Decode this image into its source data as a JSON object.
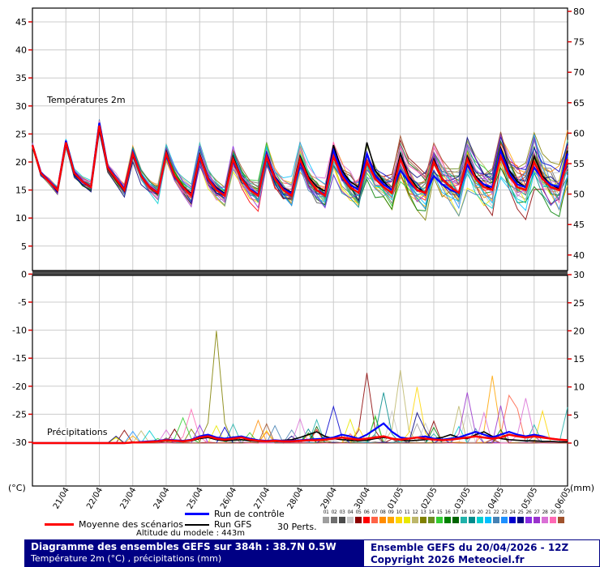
{
  "chart_data": {
    "type": "line",
    "panels": [
      {
        "id": "temperature",
        "label": "Températures 2m"
      },
      {
        "id": "precipitation",
        "label": "Précipitations"
      }
    ],
    "x_labels": [
      "21/04",
      "22/04",
      "23/04",
      "24/04",
      "25/04",
      "26/04",
      "27/04",
      "28/04",
      "29/04",
      "30/04",
      "01/05",
      "02/05",
      "03/05",
      "04/05",
      "05/05",
      "06/05"
    ],
    "n_points": 65,
    "x_step_hours": 6,
    "x_label_every": 4,
    "axes": {
      "left_unit": "(°C)",
      "right_unit": "(mm)",
      "left_ticks_top": [
        45,
        40,
        35,
        30,
        25,
        20,
        15,
        10,
        5
      ],
      "left_ticks_bottom": [
        0,
        -5,
        -10,
        -15,
        -20,
        -25,
        -30
      ],
      "right_ticks_top": [
        80,
        75,
        70,
        65,
        60,
        55,
        50,
        45,
        40
      ],
      "right_ticks_bottom": [
        30,
        25,
        20,
        15,
        10,
        5,
        0
      ]
    },
    "series": {
      "mean_temp": [
        23.0,
        18.0,
        16.5,
        15.0,
        23.5,
        18.0,
        16.5,
        15.5,
        26.5,
        19.0,
        17.0,
        15.0,
        21.5,
        17.5,
        15.5,
        14.5,
        21.5,
        17.5,
        15.5,
        14.0,
        21.0,
        17.0,
        15.0,
        14.0,
        20.5,
        17.0,
        15.0,
        14.0,
        21.0,
        17.0,
        15.0,
        14.0,
        20.5,
        17.0,
        15.0,
        14.0,
        21.0,
        17.5,
        15.5,
        14.5,
        20.0,
        17.0,
        15.5,
        14.5,
        20.5,
        17.0,
        15.0,
        14.5,
        20.0,
        17.0,
        15.5,
        14.5,
        20.5,
        17.0,
        15.5,
        15.0,
        21.0,
        17.5,
        15.5,
        15.0,
        20.0,
        17.0,
        15.5,
        15.0,
        20.5
      ],
      "control_temp": [
        23.0,
        18.2,
        16.6,
        15.1,
        23.8,
        18.2,
        16.6,
        15.6,
        27.0,
        19.2,
        17.0,
        15.2,
        21.8,
        17.6,
        15.6,
        14.6,
        21.2,
        17.4,
        15.4,
        14.2,
        20.8,
        17.2,
        15.2,
        14.2,
        20.2,
        17.0,
        15.2,
        14.2,
        21.4,
        17.2,
        15.2,
        14.4,
        20.0,
        16.8,
        15.0,
        14.2,
        22.0,
        18.0,
        16.0,
        15.0,
        21.5,
        17.5,
        16.0,
        15.0,
        18.5,
        16.5,
        15.0,
        14.5,
        17.5,
        16.0,
        15.0,
        14.5,
        19.5,
        17.0,
        16.0,
        15.5,
        22.0,
        18.0,
        16.0,
        15.5,
        19.0,
        17.0,
        16.0,
        15.5,
        21.5
      ],
      "gfs_temp": [
        23.0,
        18.0,
        16.4,
        14.9,
        23.2,
        17.8,
        16.4,
        15.4,
        26.0,
        18.8,
        16.8,
        14.8,
        21.2,
        17.4,
        15.4,
        14.4,
        21.8,
        17.6,
        15.6,
        14.4,
        21.4,
        17.2,
        15.4,
        14.4,
        21.0,
        17.2,
        15.2,
        14.2,
        21.6,
        17.4,
        15.4,
        14.6,
        21.0,
        17.4,
        15.6,
        14.8,
        23.0,
        18.5,
        16.5,
        15.5,
        23.5,
        18.5,
        16.5,
        15.0,
        21.5,
        17.5,
        15.5,
        14.5,
        20.5,
        17.0,
        15.5,
        14.5,
        21.0,
        17.5,
        16.0,
        15.0,
        22.5,
        18.5,
        16.5,
        15.5,
        21.0,
        17.5,
        16.0,
        15.2,
        22.0
      ],
      "mean_precip": [
        0,
        0,
        0,
        0,
        0,
        0,
        0,
        0,
        0,
        0,
        0,
        0,
        0.1,
        0.1,
        0.2,
        0.3,
        0.5,
        0.4,
        0.3,
        0.5,
        1.0,
        1.2,
        0.8,
        0.6,
        0.8,
        1.0,
        0.6,
        0.4,
        0.3,
        0.4,
        0.3,
        0.3,
        0.4,
        0.5,
        0.5,
        0.6,
        0.8,
        1.0,
        0.8,
        0.6,
        0.8,
        1.0,
        1.2,
        0.8,
        0.6,
        0.8,
        1.0,
        0.8,
        0.6,
        0.5,
        0.6,
        0.8,
        1.0,
        1.2,
        1.0,
        0.8,
        1.0,
        1.5,
        1.2,
        1.0,
        1.2,
        1.0,
        0.8,
        0.6,
        0.5
      ],
      "control_precip": [
        0,
        0,
        0,
        0,
        0,
        0,
        0,
        0,
        0,
        0,
        0,
        0,
        0.1,
        0.2,
        0.3,
        0.4,
        0.6,
        0.5,
        0.4,
        0.6,
        1.2,
        1.5,
        1.0,
        0.8,
        1.0,
        1.2,
        0.8,
        0.5,
        0.4,
        0.5,
        0.4,
        0.4,
        0.5,
        0.6,
        0.7,
        0.8,
        1.0,
        1.5,
        1.2,
        0.8,
        1.5,
        2.5,
        3.5,
        2.0,
        1.0,
        0.8,
        1.0,
        1.2,
        0.8,
        0.6,
        0.8,
        1.0,
        1.5,
        2.0,
        1.5,
        1.0,
        1.5,
        2.0,
        1.5,
        1.2,
        1.5,
        1.2,
        0.8,
        0.6,
        0.5
      ],
      "gfs_precip": [
        0,
        0,
        0,
        0,
        0,
        0,
        0,
        0,
        0,
        0,
        0,
        0,
        0.1,
        0.1,
        0.2,
        0.3,
        0.5,
        0.4,
        0.3,
        0.4,
        0.8,
        1.0,
        0.6,
        0.4,
        0.5,
        0.6,
        0.4,
        0.3,
        0.3,
        0.4,
        0.5,
        0.6,
        1.0,
        1.5,
        2.0,
        1.2,
        0.8,
        0.6,
        0.5,
        0.4,
        0.5,
        0.8,
        1.0,
        0.8,
        0.5,
        0.4,
        0.5,
        0.6,
        0.8,
        1.0,
        1.5,
        1.0,
        0.8,
        1.5,
        2.0,
        1.2,
        0.8,
        0.6,
        0.5,
        0.4,
        0.4,
        0.3,
        0.3,
        0.2,
        0.2
      ]
    },
    "members": {
      "count": 30,
      "colors": [
        "#9e9e9e",
        "#6e6e6e",
        "#4a4a4a",
        "#c8c8c8",
        "#8b0000",
        "#ff0000",
        "#ff6347",
        "#ff8c00",
        "#ffa500",
        "#ffd700",
        "#e8e800",
        "#bdb76b",
        "#808000",
        "#6b8e23",
        "#32cd32",
        "#008000",
        "#006400",
        "#20b2aa",
        "#008b8b",
        "#00ced1",
        "#00bfff",
        "#4682b4",
        "#1e90ff",
        "#0000cd",
        "#000080",
        "#8a2be2",
        "#9932cc",
        "#da70d6",
        "#ff69b4",
        "#a0522d"
      ],
      "temp_spread": {
        "start": 0.5,
        "end": 4.0,
        "pow": 1.1
      },
      "precip_spikes": [
        {
          "member": 12,
          "idx": 22,
          "mm": 20.0
        },
        {
          "member": 4,
          "idx": 40,
          "mm": 12.5
        },
        {
          "member": 11,
          "idx": 44,
          "mm": 13.0
        },
        {
          "member": 18,
          "idx": 42,
          "mm": 9.0
        },
        {
          "member": 8,
          "idx": 55,
          "mm": 12.0
        },
        {
          "member": 26,
          "idx": 52,
          "mm": 9.0
        },
        {
          "member": 27,
          "idx": 59,
          "mm": 8.0
        },
        {
          "member": 9,
          "idx": 46,
          "mm": 10.0
        },
        {
          "member": 28,
          "idx": 19,
          "mm": 6.0
        },
        {
          "member": 14,
          "idx": 18,
          "mm": 4.5
        },
        {
          "member": 23,
          "idx": 36,
          "mm": 6.5
        },
        {
          "member": 6,
          "idx": 57,
          "mm": 8.5
        }
      ]
    },
    "colors": {
      "mean": "#ff0000",
      "control": "#0000ff",
      "gfs": "#000000",
      "grid": "#cccccc",
      "tick": "#dd0000",
      "border": "#000000",
      "divider": "#4a4a4a"
    }
  },
  "legend": {
    "mean_label": "Moyenne des scénarios",
    "control_label": "Run de contrôle",
    "gfs_label": "Run GFS",
    "perts_label": "30 Perts.",
    "member_numbers": [
      "01",
      "02",
      "03",
      "04",
      "05",
      "06",
      "07",
      "08",
      "09",
      "10",
      "11",
      "12",
      "13",
      "14",
      "15",
      "16",
      "17",
      "18",
      "19",
      "20",
      "21",
      "22",
      "23",
      "24",
      "25",
      "26",
      "27",
      "28",
      "29",
      "30"
    ],
    "altitude_text": "Altitude du modele : 443m"
  },
  "footer": {
    "title_line1": "Diagramme des ensembles GEFS sur 384h : 38.7N 0.5W",
    "title_line2": "Température 2m (°C) , précipitations (mm)",
    "right_line1": "Ensemble GEFS du 20/04/2026 - 12Z",
    "right_line2": "Copyright 2026 Meteociel.fr",
    "bar_color": "#000084"
  }
}
